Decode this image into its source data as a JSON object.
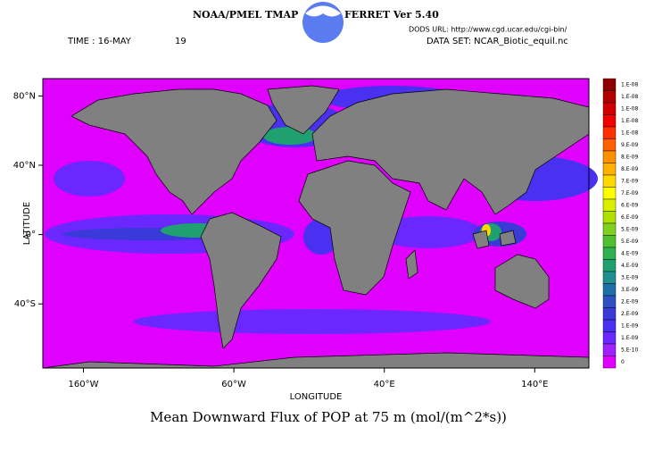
{
  "header": {
    "left_title": "NOAA/PMEL TMAP",
    "right_title": "FERRET Ver 5.40",
    "dods_url": "DODS URL: http://www.cgd.ucar.edu/cgi-bin/",
    "time": "TIME : 16-MAY",
    "time_extra": "19",
    "data_set": "DATA SET: NCAR_Biotic_equil.nc"
  },
  "map": {
    "xlabel": "LONGITUDE",
    "ylabel": "LATITUDE",
    "title": "Mean Downward Flux of POP at 75 m (mol/(m^2*s))",
    "xlim": [
      -187,
      176
    ],
    "ylim": [
      -77,
      90
    ],
    "xticks": [
      {
        "value": -160,
        "label": "160°W"
      },
      {
        "value": -60,
        "label": "60°W"
      },
      {
        "value": 40,
        "label": "40°E"
      },
      {
        "value": 140,
        "label": "140°E"
      }
    ],
    "yticks": [
      {
        "value": 80,
        "label": "80°N"
      },
      {
        "value": 40,
        "label": "40°N"
      },
      {
        "value": 0,
        "label": "0°"
      },
      {
        "value": -40,
        "label": "40°S"
      }
    ]
  },
  "colorbar": {
    "labels": [
      "1.E-08",
      "1.E-08",
      "1.E-08",
      "1.E-08",
      "1.E-08",
      "9.E-09",
      "8.E-09",
      "8.E-09",
      "7.E-09",
      "7.E-09",
      "6.E-09",
      "6.E-09",
      "5.E-09",
      "5.E-09",
      "4.E-09",
      "4.E-09",
      "3.E-09",
      "3.E-09",
      "2.E-09",
      "2.E-09",
      "1.E-09",
      "1.E-09",
      "5.E-10",
      "0"
    ],
    "colors": [
      "#8b0000",
      "#b00000",
      "#d00000",
      "#f00000",
      "#ff3000",
      "#ff6000",
      "#ff9000",
      "#ffb000",
      "#ffd800",
      "#ffff00",
      "#d8f000",
      "#b0e000",
      "#80d020",
      "#50c030",
      "#30b050",
      "#20a070",
      "#208f90",
      "#2070a8",
      "#3050c0",
      "#3a3ad8",
      "#4a30f0",
      "#6a28ff",
      "#a020ff",
      "#e000ff"
    ]
  }
}
